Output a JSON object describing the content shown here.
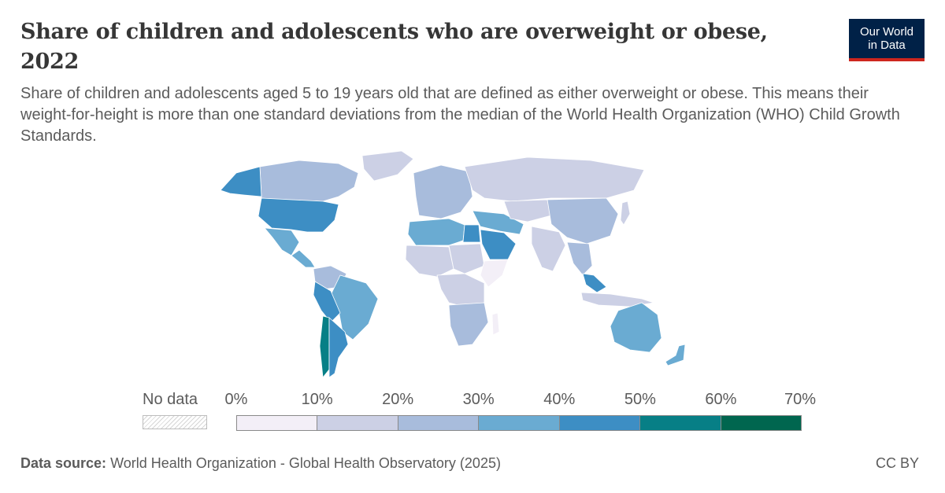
{
  "header": {
    "title": "Share of children and adolescents who are overweight or obese, 2022",
    "subtitle": "Share of children and adolescents aged 5 to 19 years old that are defined as either overweight or obese. This means their weight-for-height is more than one standard deviations from the median of the World Health Organization (WHO) Child Growth Standards."
  },
  "logo": {
    "line1": "Our World",
    "line2": "in Data",
    "bg_color": "#002147",
    "accent_color": "#ce261e"
  },
  "legend": {
    "no_data_label": "No data",
    "ticks": [
      "0%",
      "10%",
      "20%",
      "30%",
      "40%",
      "50%",
      "60%",
      "70%"
    ],
    "bins": [
      {
        "range": "0–10%",
        "color": "#f3eff7"
      },
      {
        "range": "10–20%",
        "color": "#ccd0e5"
      },
      {
        "range": "20–30%",
        "color": "#a8bcdc"
      },
      {
        "range": "30–40%",
        "color": "#6aabd2"
      },
      {
        "range": "40–50%",
        "color": "#3d8ec4"
      },
      {
        "range": "50–60%",
        "color": "#077f86"
      },
      {
        "range": "60–70%",
        "color": "#00664f"
      }
    ]
  },
  "footer": {
    "source_label": "Data source:",
    "source_text": "World Health Organization - Global Health Observatory (2025)",
    "license": "CC BY"
  },
  "regions": [
    {
      "name": "Canada",
      "color": "#a8bcdc"
    },
    {
      "name": "Alaska",
      "color": "#3d8ec4"
    },
    {
      "name": "United States",
      "color": "#3d8ec4"
    },
    {
      "name": "Greenland",
      "color": "#ccd0e5"
    },
    {
      "name": "Mexico",
      "color": "#6aabd2"
    },
    {
      "name": "Central America",
      "color": "#6aabd2"
    },
    {
      "name": "Colombia & Venezuela",
      "color": "#a8bcdc"
    },
    {
      "name": "Brazil",
      "color": "#6aabd2"
    },
    {
      "name": "Peru & Bolivia",
      "color": "#3d8ec4"
    },
    {
      "name": "Chile",
      "color": "#077f86"
    },
    {
      "name": "Argentina",
      "color": "#3d8ec4"
    },
    {
      "name": "Europe",
      "color": "#a8bcdc"
    },
    {
      "name": "Russia",
      "color": "#ccd0e5"
    },
    {
      "name": "North Africa",
      "color": "#6aabd2"
    },
    {
      "name": "Egypt",
      "color": "#3d8ec4"
    },
    {
      "name": "Arabian Peninsula",
      "color": "#3d8ec4"
    },
    {
      "name": "Middle East",
      "color": "#6aabd2"
    },
    {
      "name": "Central Asia",
      "color": "#ccd0e5"
    },
    {
      "name": "China",
      "color": "#a8bcdc"
    },
    {
      "name": "India",
      "color": "#ccd0e5"
    },
    {
      "name": "Southeast Asia",
      "color": "#a8bcdc"
    },
    {
      "name": "Malaysia",
      "color": "#3d8ec4"
    },
    {
      "name": "Indonesia",
      "color": "#ccd0e5"
    },
    {
      "name": "West Africa",
      "color": "#ccd0e5"
    },
    {
      "name": "Sahel",
      "color": "#ccd0e5"
    },
    {
      "name": "Horn of Africa",
      "color": "#f3eff7"
    },
    {
      "name": "Central Africa",
      "color": "#ccd0e5"
    },
    {
      "name": "Southern Africa",
      "color": "#a8bcdc"
    },
    {
      "name": "Madagascar",
      "color": "#f3eff7"
    },
    {
      "name": "Australia",
      "color": "#6aabd2"
    },
    {
      "name": "New Zealand",
      "color": "#6aabd2"
    },
    {
      "name": "Japan",
      "color": "#ccd0e5"
    }
  ]
}
